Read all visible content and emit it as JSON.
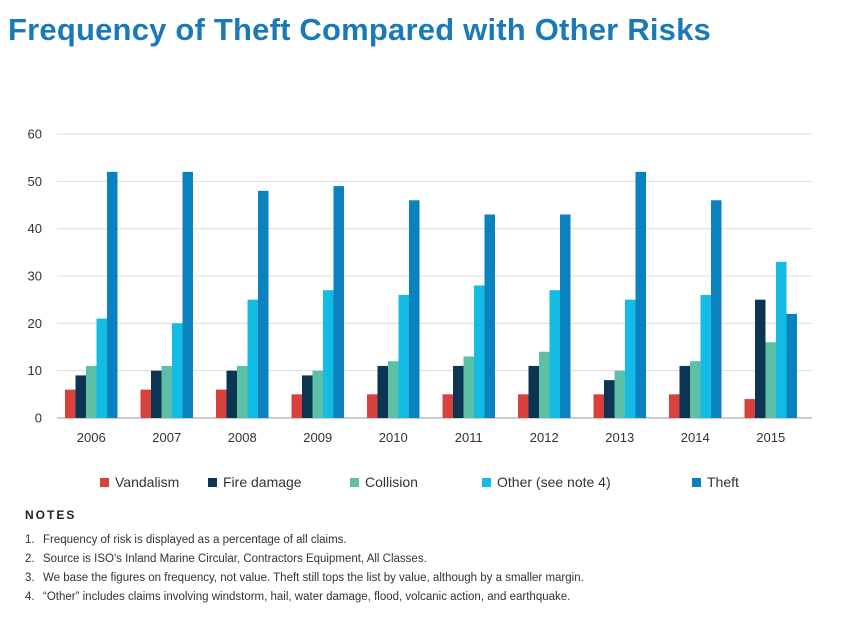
{
  "page": {
    "title": "Frequency of Theft Compared with Other Risks"
  },
  "chart_data": {
    "type": "bar",
    "title": "",
    "xlabel": "",
    "ylabel": "",
    "ylim": [
      0,
      60
    ],
    "yticks": [
      "0",
      "10",
      "20",
      "30",
      "40",
      "50",
      "60"
    ],
    "grid": true,
    "legend_position": "bottom",
    "categories": [
      "2006",
      "2007",
      "2008",
      "2009",
      "2010",
      "2011",
      "2012",
      "2013",
      "2014",
      "2015"
    ],
    "series": [
      {
        "name": "Vandalism",
        "color": "#d9413f",
        "values": [
          6,
          6,
          6,
          5,
          5,
          5,
          5,
          5,
          5,
          4
        ]
      },
      {
        "name": "Fire damage",
        "color": "#0c3553",
        "values": [
          9,
          10,
          10,
          9,
          11,
          11,
          11,
          8,
          11,
          25
        ]
      },
      {
        "name": "Collision",
        "color": "#5cc0a6",
        "values": [
          11,
          11,
          11,
          10,
          12,
          13,
          14,
          10,
          12,
          16
        ]
      },
      {
        "name": "Other (see note 4)",
        "color": "#14bbe4",
        "values": [
          21,
          20,
          25,
          27,
          26,
          28,
          27,
          25,
          26,
          33
        ]
      },
      {
        "name": "Theft",
        "color": "#0b82c0",
        "values": [
          52,
          52,
          48,
          49,
          46,
          43,
          43,
          52,
          46,
          22
        ]
      }
    ]
  },
  "notes": {
    "heading": "NOTES",
    "items": [
      {
        "num": "1.",
        "text": "Frequency of risk is displayed as a percentage of all claims."
      },
      {
        "num": "2.",
        "text": "Source is ISO's Inland Marine Circular, Contractors Equipment, All Classes."
      },
      {
        "num": "3.",
        "text": "We base the figures on frequency, not value. Theft still tops the list by value, although by a smaller margin."
      },
      {
        "num": "4.",
        "text": "“Other” includes claims involving windstorm, hail, water damage, flood, volcanic action, and earthquake."
      }
    ]
  }
}
